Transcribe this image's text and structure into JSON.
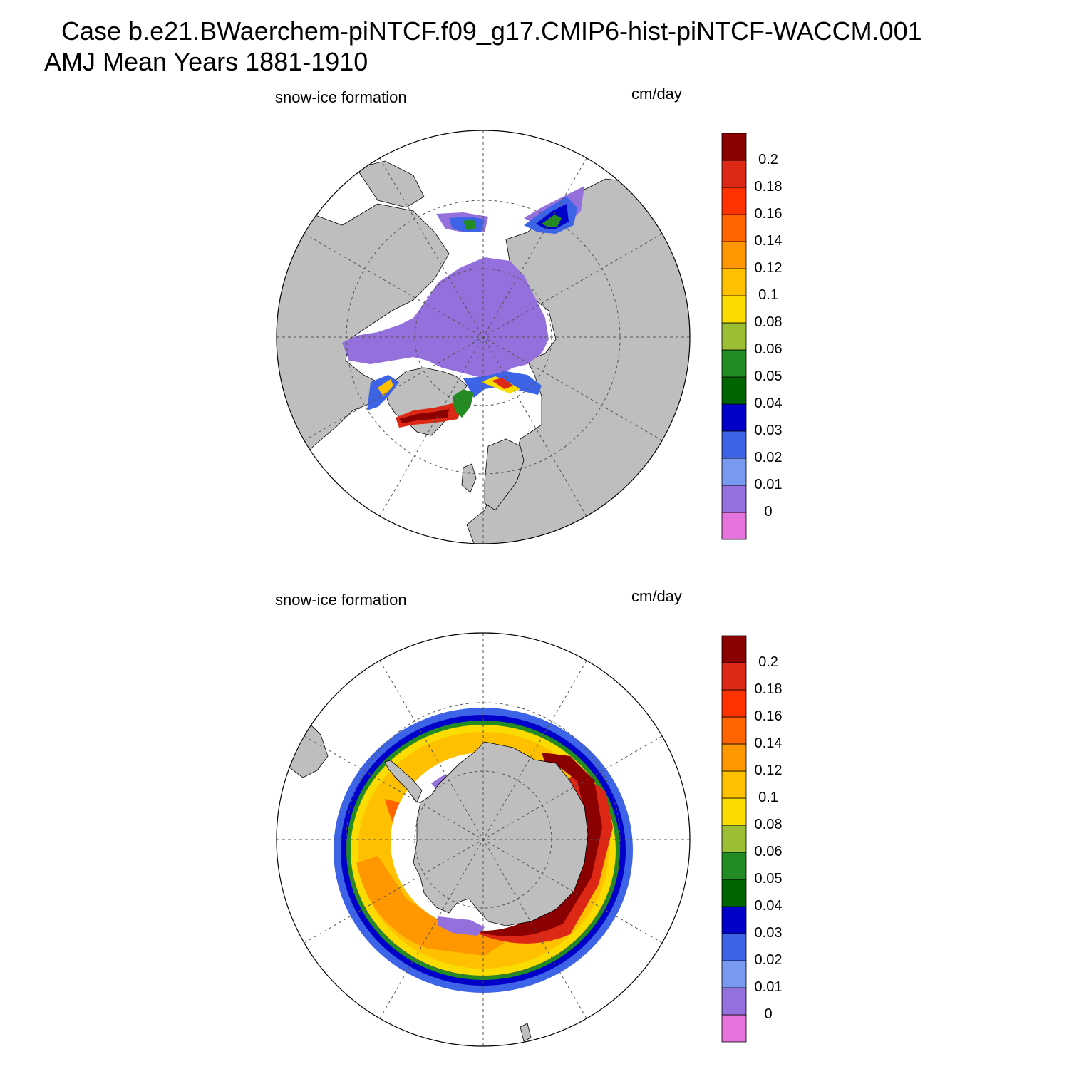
{
  "title": {
    "line1": "Case b.e21.BWaerchem-piNTCF.f09_g17.CMIP6-hist-piNTCF-WACCM.001",
    "line2": "AMJ Mean   Years 1881-1910"
  },
  "colors": {
    "land": "#bebebe",
    "ocean_open": "#ffffff",
    "grid": "#555555"
  },
  "colorbar": {
    "levels": [
      "0",
      "0.01",
      "0.02",
      "0.03",
      "0.04",
      "0.05",
      "0.06",
      "0.08",
      "0.1",
      "0.12",
      "0.14",
      "0.16",
      "0.18",
      "0.2"
    ],
    "colors": [
      "#e474dc",
      "#9370db",
      "#7799f0",
      "#3d63e6",
      "#0000c8",
      "#006400",
      "#228b22",
      "#9bbe32",
      "#fadc00",
      "#ffc000",
      "#ff9800",
      "#ff6400",
      "#ff3200",
      "#dc2814",
      "#8b0000"
    ]
  },
  "panels": [
    {
      "id": "north",
      "hemisphere": "Arctic",
      "variable_label": "snow-ice formation",
      "units": "cm/day"
    },
    {
      "id": "south",
      "hemisphere": "Antarctic",
      "variable_label": "snow-ice formation",
      "units": "cm/day"
    }
  ]
}
